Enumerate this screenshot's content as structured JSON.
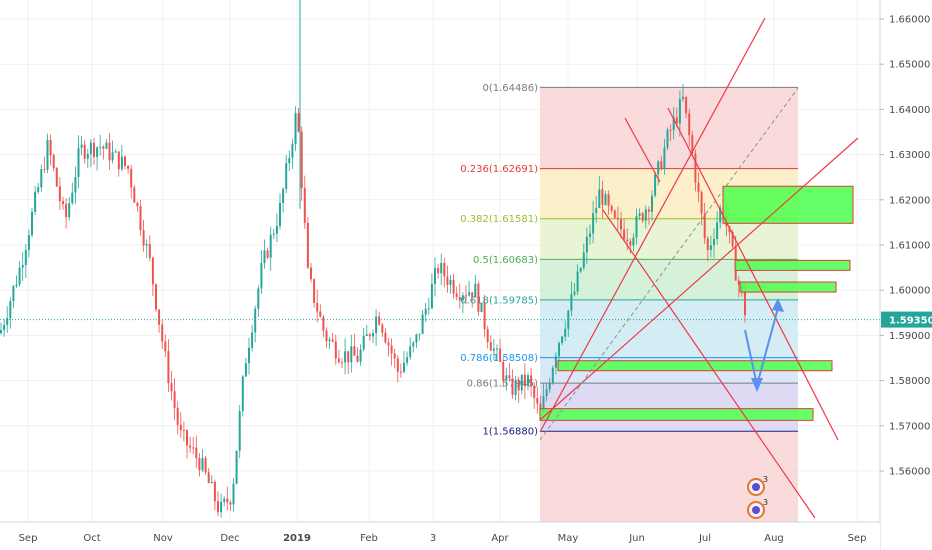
{
  "chart_data": {
    "type": "candlestick",
    "price_axis": {
      "ticks": [
        "1.66000",
        "1.65000",
        "1.64000",
        "1.63000",
        "1.62000",
        "1.61000",
        "1.60000",
        "1.59000",
        "1.58000",
        "1.57000",
        "1.56000"
      ],
      "range": [
        1.55,
        1.664
      ],
      "current_price_label": "1.59350",
      "current_price": 1.5935
    },
    "time_axis": {
      "labels": [
        "Sep",
        "Oct",
        "Nov",
        "Dec",
        "2019",
        "Feb",
        "3",
        "Apr",
        "May",
        "Jun",
        "Jul",
        "Aug",
        "Sep"
      ]
    },
    "fibonacci": {
      "levels": [
        {
          "label": "0(1.64486)",
          "price": 1.64486,
          "color": "#787b86"
        },
        {
          "label": "0.236(1.62691)",
          "price": 1.62691,
          "color": "#e53935"
        },
        {
          "label": "0.382(1.61581)",
          "price": 1.61581,
          "color": "#9abf2e"
        },
        {
          "label": "0.5(1.60683)",
          "price": 1.60683,
          "color": "#4caf50"
        },
        {
          "label": "0.618(1.59785)",
          "price": 1.59785,
          "color": "#26a69a"
        },
        {
          "label": "0.786(1.58508)",
          "price": 1.58508,
          "color": "#2196f3"
        },
        {
          "label": "0.86(1.57945)",
          "price": 1.57945,
          "color": "#787b86"
        },
        {
          "label": "1(1.56880)",
          "price": 1.5688,
          "color": "#1a237e"
        }
      ]
    },
    "zones": [
      {
        "name": "supply-1",
        "top": 1.623,
        "bottom": 1.6148
      },
      {
        "name": "supply-2",
        "top": 1.6066,
        "bottom": 1.6058
      },
      {
        "name": "supply-3",
        "top": 1.6018,
        "bottom": 1.5998
      },
      {
        "name": "demand-1",
        "top": 1.5844,
        "bottom": 1.5822
      },
      {
        "name": "demand-2",
        "top": 1.5738,
        "bottom": 1.5712
      }
    ],
    "event_markers": [
      {
        "label": "3"
      },
      {
        "label": "3"
      }
    ],
    "colors": {
      "up": "#26a69a",
      "down": "#ef5350",
      "zone_fill": "#4cff4c",
      "trendline": "#f23645",
      "projection": "#5b8ff0",
      "price_line": "#26a69a"
    }
  }
}
